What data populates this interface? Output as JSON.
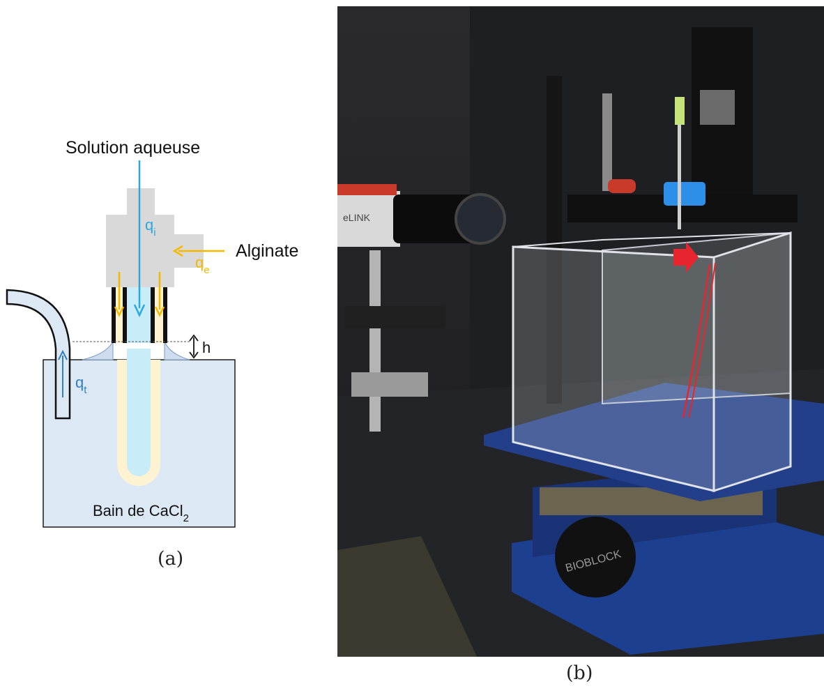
{
  "panel_a": {
    "label_solution": "Solution aqueuse",
    "label_alginate": "Alginate",
    "label_qi_base": "q",
    "label_qi_sub": "i",
    "label_qe_base": "q",
    "label_qe_sub": "e",
    "label_qt_base": "q",
    "label_qt_sub": "t",
    "label_h": "h",
    "label_bath": "Bain de CaCl",
    "label_bath_sub": "2",
    "caption": "(a)"
  },
  "panel_b": {
    "camera_brand": "eLINK",
    "jack_brand": "BIOBLOCK",
    "caption": "(b)"
  },
  "colors": {
    "aqueous_blue": "#29a9df",
    "alginate_orange": "#f5b800",
    "bath_fill": "#dde8f5",
    "device_grey": "#d9d9d9",
    "red_arrow": "#e8252e"
  }
}
